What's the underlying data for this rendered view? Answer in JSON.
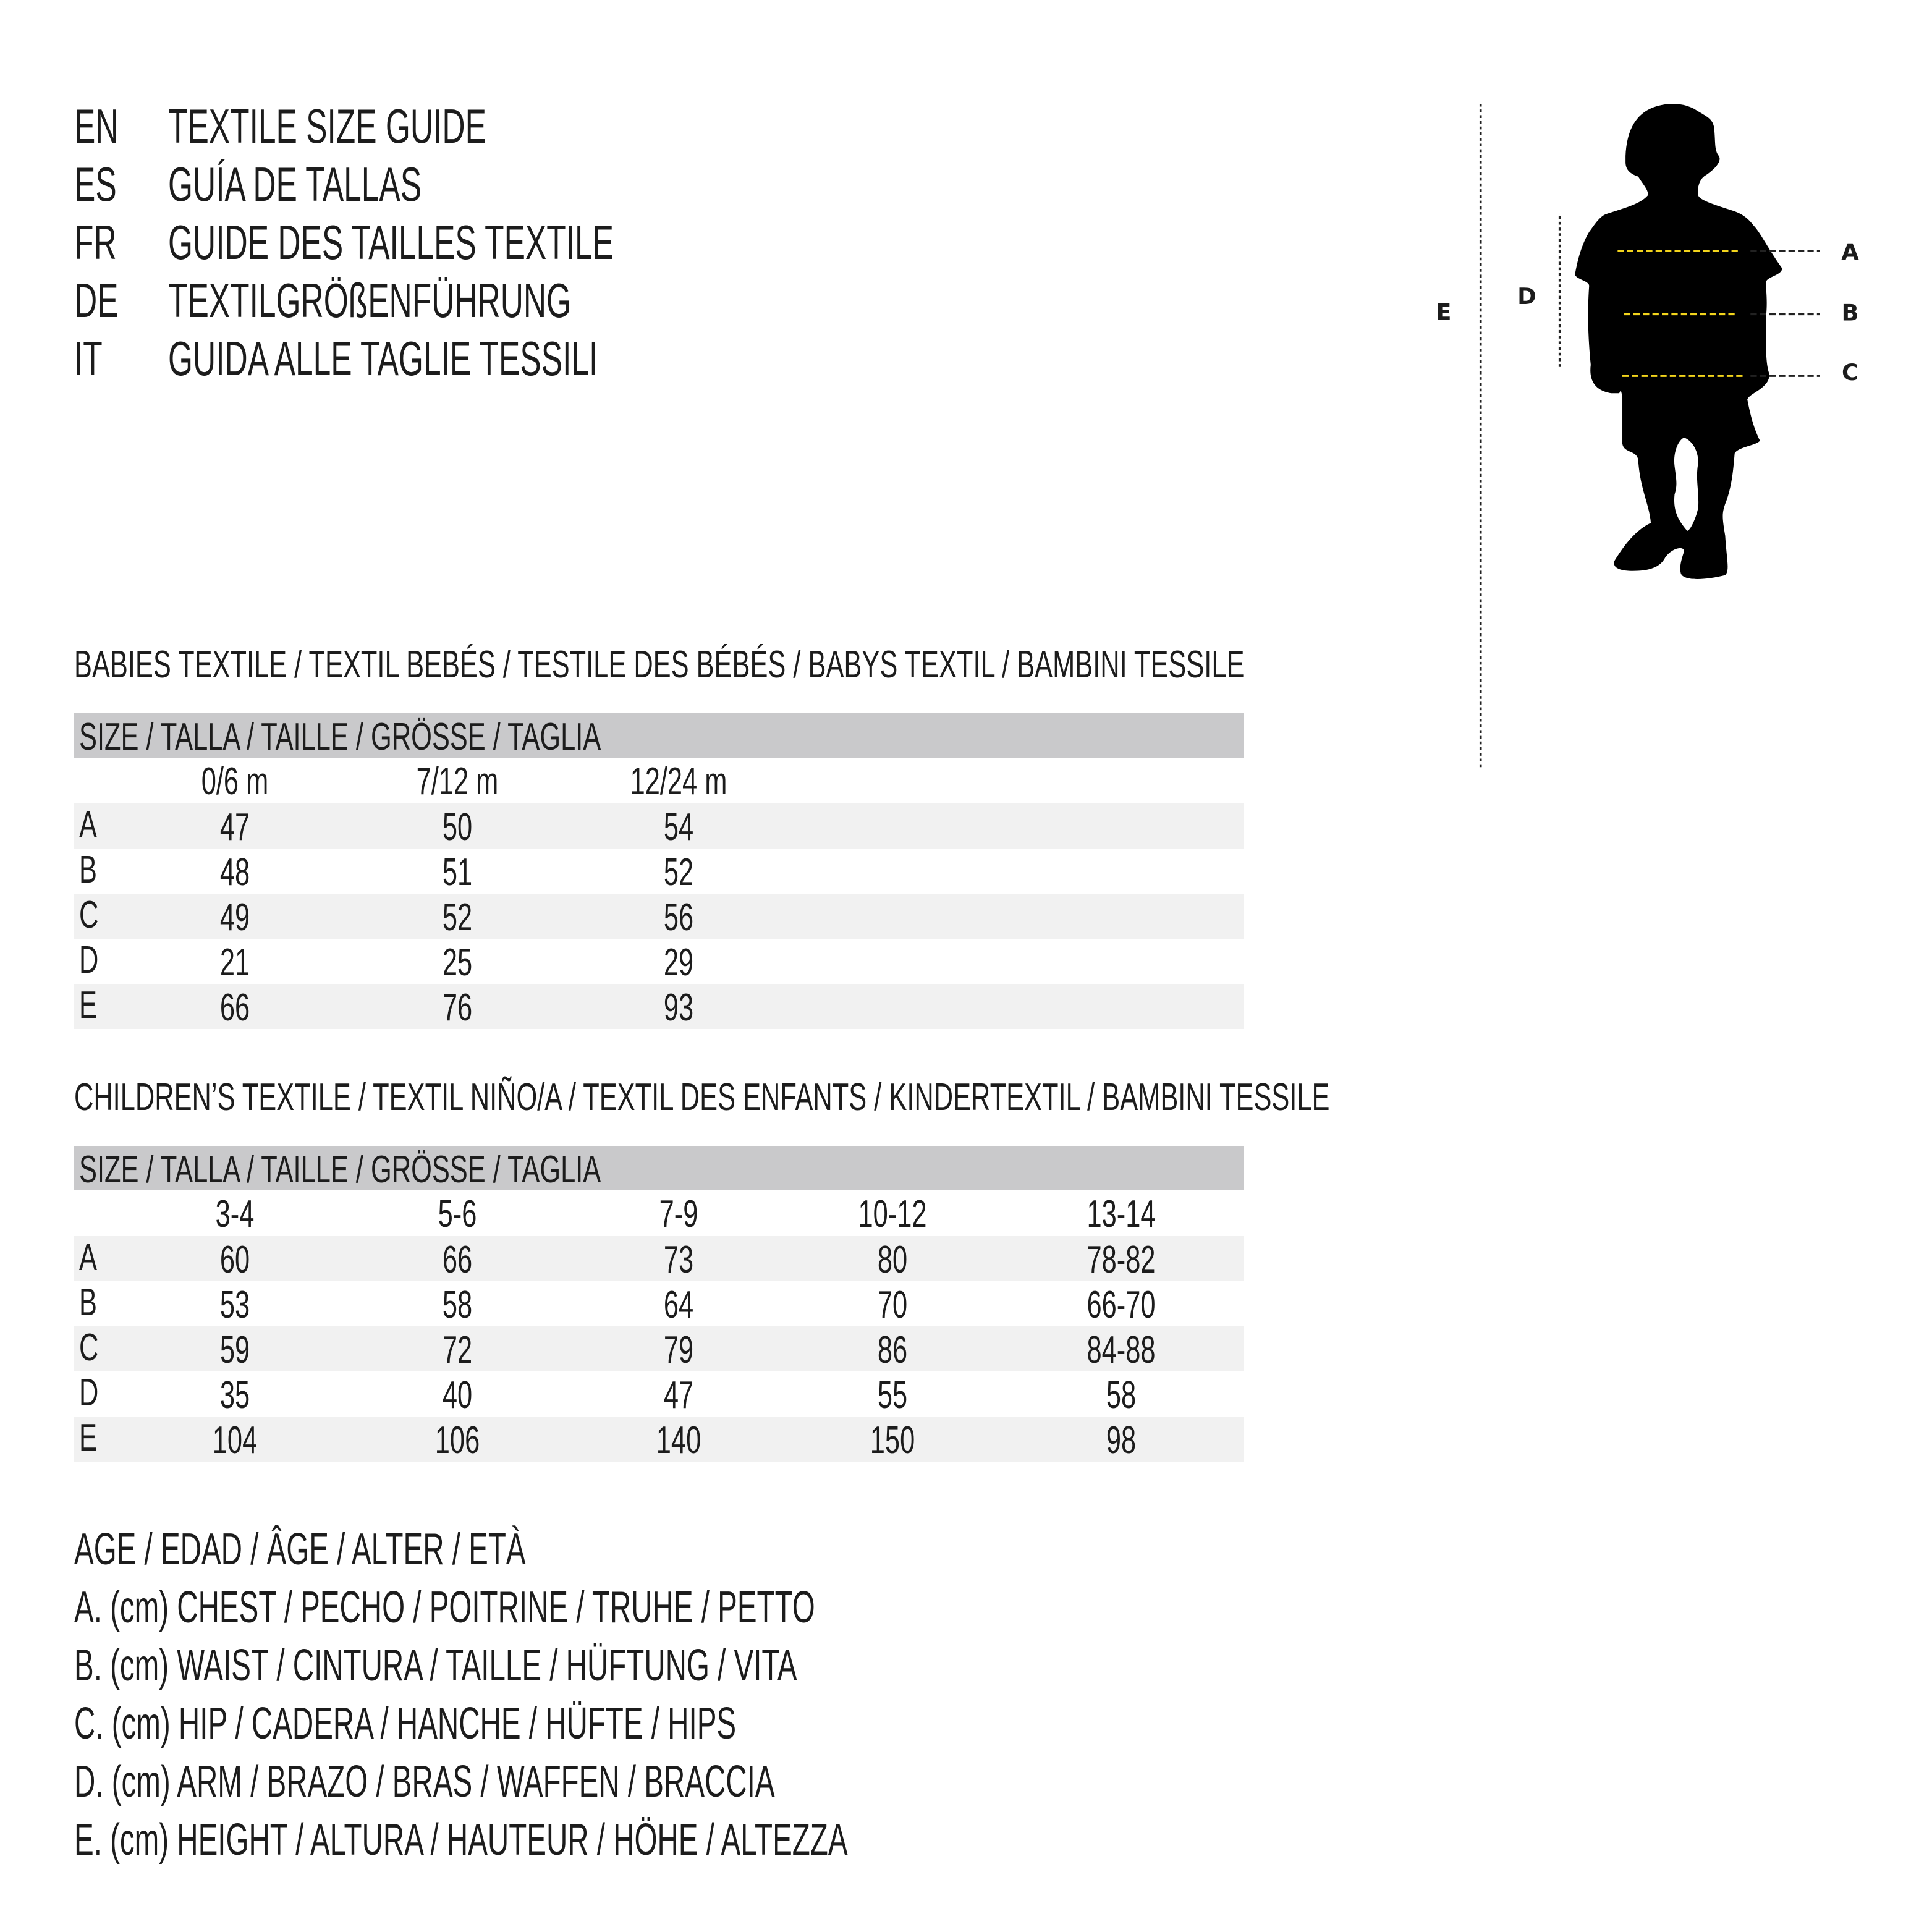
{
  "titles": [
    {
      "lang": "EN",
      "text": "TEXTILE SIZE GUIDE"
    },
    {
      "lang": "ES",
      "text": "GUÍA DE TALLAS"
    },
    {
      "lang": "FR",
      "text": "GUIDE DES TAILLES TEXTILE"
    },
    {
      "lang": "DE",
      "text": "TEXTILGRÖßENFÜHRUNG"
    },
    {
      "lang": "IT",
      "text": "GUIDA ALLE TAGLIE TESSILI"
    }
  ],
  "figure": {
    "labels": {
      "A": "A",
      "B": "B",
      "C": "C",
      "D": "D",
      "E": "E"
    },
    "measure_line_color": "#f2d41c"
  },
  "babies": {
    "heading": "BABIES TEXTILE / TEXTIL BEBÉS / TESTILE DES BÉBÉS / BABYS TEXTIL / BAMBINI TESSILE",
    "size_header": "SIZE / TALLA / TAILLE / GRÖSSE / TAGLIA",
    "columns": [
      "0/6 m",
      "7/12 m",
      "12/24 m"
    ],
    "rows": [
      {
        "label": "A",
        "values": [
          "47",
          "50",
          "54"
        ]
      },
      {
        "label": "B",
        "values": [
          "48",
          "51",
          "52"
        ]
      },
      {
        "label": "C",
        "values": [
          "49",
          "52",
          "56"
        ]
      },
      {
        "label": "D",
        "values": [
          "21",
          "25",
          "29"
        ]
      },
      {
        "label": "E",
        "values": [
          "66",
          "76",
          "93"
        ]
      }
    ]
  },
  "children": {
    "heading": "CHILDREN’S TEXTILE / TEXTIL NIÑO/A / TEXTIL DES ENFANTS / KINDERTEXTIL / BAMBINI TESSILE",
    "size_header": "SIZE / TALLA / TAILLE / GRÖSSE / TAGLIA",
    "columns": [
      "3-4",
      "5-6",
      "7-9",
      "10-12",
      "13-14"
    ],
    "rows": [
      {
        "label": "A",
        "values": [
          "60",
          "66",
          "73",
          "80",
          "78-82"
        ]
      },
      {
        "label": "B",
        "values": [
          "53",
          "58",
          "64",
          "70",
          "66-70"
        ]
      },
      {
        "label": "C",
        "values": [
          "59",
          "72",
          "79",
          "86",
          "84-88"
        ]
      },
      {
        "label": "D",
        "values": [
          "35",
          "40",
          "47",
          "55",
          "58"
        ]
      },
      {
        "label": "E",
        "values": [
          "104",
          "106",
          "140",
          "150",
          "98"
        ]
      }
    ]
  },
  "legend": [
    "AGE / EDAD / ÂGE / ALTER / ETÀ",
    "A. (cm) CHEST / PECHO / POITRINE / TRUHE / PETTO",
    "B. (cm) WAIST / CINTURA / TAILLE / HÜFTUNG / VITA",
    "C. (cm) HIP / CADERA / HANCHE / HÜFTE / HIPS",
    "D. (cm) ARM / BRAZO / BRAS / WAFFEN / BRACCIA",
    "E. (cm) HEIGHT / ALTURA / HAUTEUR / HÖHE / ALTEZZA"
  ]
}
